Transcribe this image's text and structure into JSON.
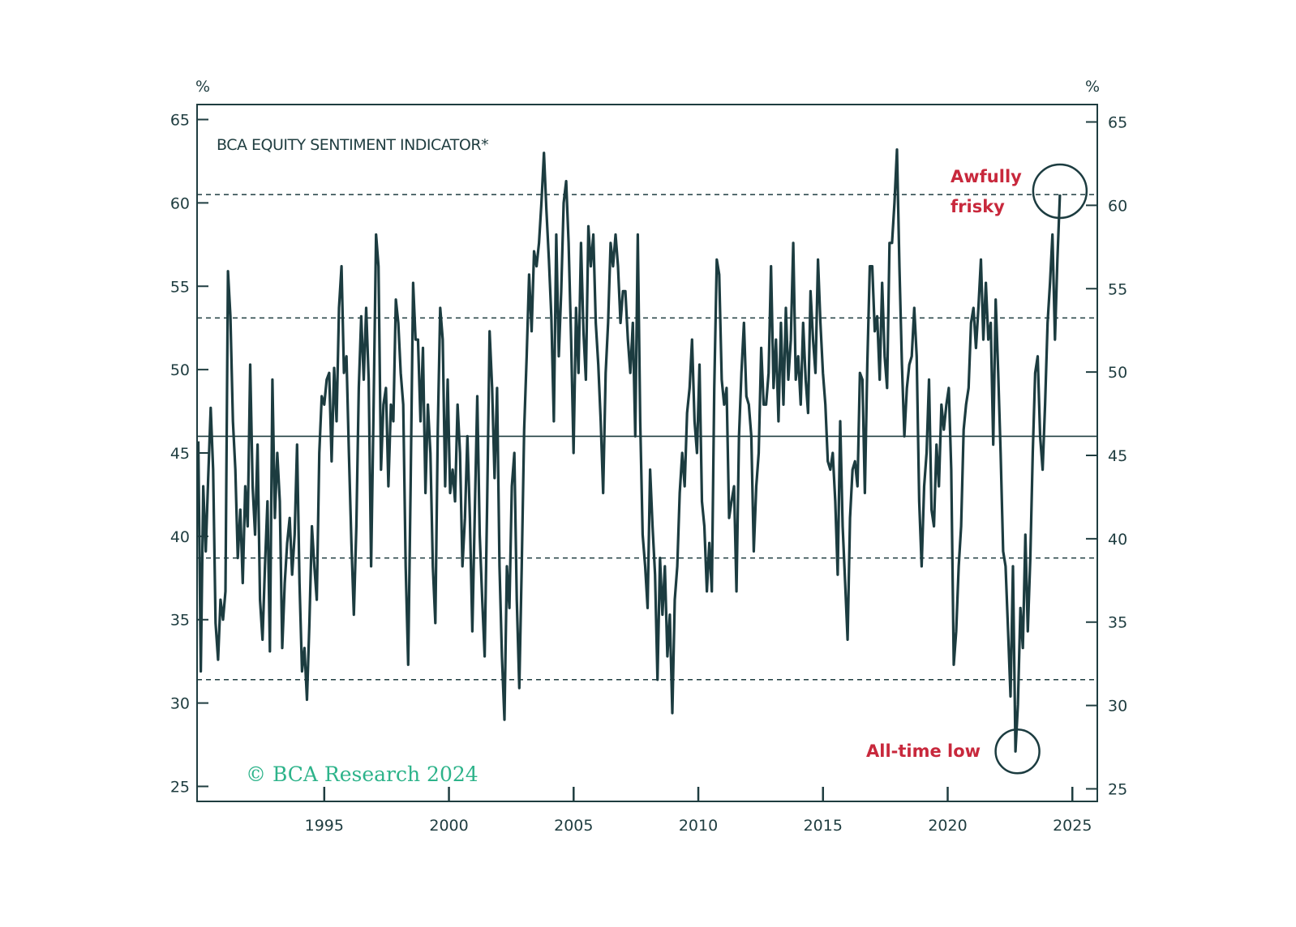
{
  "chart_data": {
    "type": "line",
    "title": "BCA EQUITY SENTIMENT INDICATOR*",
    "xlabel": "",
    "ylabel_left": "%",
    "ylabel_right": "%",
    "xlim": [
      1989.9,
      2026.0
    ],
    "ylim": [
      24.1,
      65.9
    ],
    "x_ticks": [
      1995,
      2000,
      2005,
      2010,
      2015,
      2020,
      2025
    ],
    "x_tick_labels": [
      "1995",
      "2000",
      "2005",
      "2010",
      "2015",
      "2020",
      "2025"
    ],
    "y_ticks": [
      25,
      30,
      35,
      40,
      45,
      50,
      55,
      60,
      65
    ],
    "y_tick_labels": [
      "25",
      "30",
      "35",
      "40",
      "45",
      "50",
      "55",
      "60",
      "65"
    ],
    "reference_lines": {
      "solid": [
        46.0
      ],
      "dashed": [
        60.5,
        53.1,
        38.7,
        31.4
      ]
    },
    "series": [
      {
        "name": "BCA Equity Sentiment Indicator",
        "x_start": 1989.95,
        "x_end": 2024.5,
        "values": [
          45.7,
          31.9,
          43.0,
          39.1,
          43.5,
          47.7,
          44.0,
          34.8,
          32.6,
          36.2,
          35.0,
          36.7,
          55.9,
          53.2,
          46.9,
          44.0,
          38.7,
          41.6,
          37.2,
          43.0,
          40.6,
          50.3,
          43.0,
          40.1,
          45.5,
          36.2,
          33.8,
          38.2,
          42.1,
          33.1,
          49.4,
          41.1,
          45.0,
          42.1,
          33.3,
          37.2,
          39.6,
          41.1,
          37.7,
          40.1,
          45.5,
          37.2,
          31.9,
          33.3,
          30.2,
          34.8,
          40.6,
          38.2,
          36.2,
          45.0,
          48.4,
          47.9,
          49.4,
          49.8,
          44.5,
          50.1,
          46.9,
          53.7,
          56.2,
          49.8,
          50.8,
          45.0,
          39.6,
          35.3,
          40.6,
          48.9,
          53.2,
          49.4,
          53.7,
          49.4,
          38.2,
          47.9,
          58.1,
          56.2,
          44.0,
          47.9,
          48.9,
          43.0,
          47.9,
          46.9,
          54.2,
          52.8,
          49.8,
          47.9,
          38.2,
          32.3,
          43.0,
          55.2,
          51.8,
          51.8,
          46.9,
          51.3,
          42.6,
          47.9,
          45.0,
          38.2,
          34.8,
          46.4,
          53.7,
          51.8,
          43.0,
          49.4,
          42.6,
          44.0,
          42.1,
          47.9,
          45.0,
          38.2,
          41.1,
          46.0,
          41.1,
          34.3,
          41.6,
          48.4,
          40.1,
          36.2,
          32.8,
          42.1,
          52.3,
          48.9,
          43.5,
          48.9,
          38.2,
          32.8,
          29.0,
          38.2,
          35.7,
          43.0,
          45.0,
          36.2,
          30.9,
          38.2,
          46.4,
          50.8,
          55.7,
          52.3,
          57.1,
          56.2,
          57.6,
          60.0,
          63.0,
          59.6,
          56.6,
          53.2,
          46.9,
          58.1,
          50.8,
          54.7,
          60.0,
          61.3,
          57.6,
          51.8,
          45.0,
          53.7,
          49.8,
          57.6,
          52.3,
          49.4,
          58.6,
          56.2,
          58.1,
          52.8,
          50.3,
          46.9,
          42.6,
          49.8,
          52.8,
          57.6,
          56.2,
          58.1,
          56.2,
          52.8,
          54.7,
          54.7,
          51.8,
          49.8,
          52.8,
          46.0,
          58.1,
          46.9,
          40.1,
          38.2,
          35.7,
          44.0,
          40.6,
          37.7,
          31.4,
          38.7,
          35.3,
          38.2,
          32.8,
          35.3,
          29.4,
          36.2,
          38.2,
          42.6,
          45.0,
          43.0,
          47.4,
          48.9,
          51.8,
          46.9,
          45.0,
          50.3,
          42.1,
          40.6,
          36.7,
          39.6,
          36.7,
          48.9,
          56.6,
          55.7,
          49.4,
          47.9,
          48.9,
          41.1,
          42.1,
          43.0,
          36.7,
          46.0,
          49.8,
          52.8,
          48.4,
          47.9,
          46.0,
          39.1,
          43.0,
          45.0,
          51.3,
          47.9,
          47.9,
          49.8,
          56.2,
          48.9,
          51.8,
          46.9,
          52.8,
          47.9,
          53.7,
          49.4,
          51.8,
          57.6,
          49.4,
          50.8,
          47.9,
          52.8,
          49.4,
          47.4,
          54.7,
          51.8,
          49.8,
          56.6,
          52.8,
          49.8,
          47.9,
          44.5,
          44.0,
          45.0,
          42.1,
          37.7,
          46.9,
          40.6,
          37.2,
          33.8,
          41.1,
          44.0,
          44.5,
          43.0,
          49.8,
          49.4,
          42.6,
          50.3,
          56.2,
          56.2,
          52.3,
          53.2,
          49.4,
          55.2,
          50.8,
          48.9,
          57.6,
          57.6,
          60.0,
          63.2,
          56.2,
          50.3,
          46.0,
          48.9,
          50.3,
          50.8,
          53.7,
          50.8,
          42.1,
          38.2,
          43.0,
          45.0,
          49.4,
          41.6,
          40.6,
          45.5,
          43.0,
          47.9,
          46.4,
          47.9,
          48.9,
          44.0,
          32.3,
          34.3,
          38.2,
          40.6,
          46.4,
          47.9,
          48.9,
          52.8,
          53.7,
          51.3,
          53.7,
          56.6,
          51.8,
          55.2,
          51.8,
          52.8,
          45.5,
          54.2,
          49.8,
          45.0,
          39.1,
          38.2,
          34.3,
          30.4,
          38.2,
          27.1,
          29.9,
          35.7,
          33.3,
          40.1,
          34.3,
          38.7,
          45.0,
          49.8,
          50.8,
          46.0,
          44.0,
          47.9,
          52.8,
          55.2,
          58.1,
          51.8,
          56.6,
          60.5
        ]
      }
    ],
    "annotations": [
      {
        "text_lines": [
          "Awfully",
          "frisky"
        ],
        "x": 2024.5,
        "y": 60.7,
        "marker": "circle"
      },
      {
        "text": "All-time low",
        "x": 2022.8,
        "y": 27.1,
        "marker": "circle"
      }
    ],
    "watermark": "© BCA Research 2024",
    "grid": false
  },
  "colors": {
    "line": "#1c3c40",
    "axis": "#1f3d40",
    "annotation": "#c8283c",
    "watermark": "#2db38a"
  }
}
